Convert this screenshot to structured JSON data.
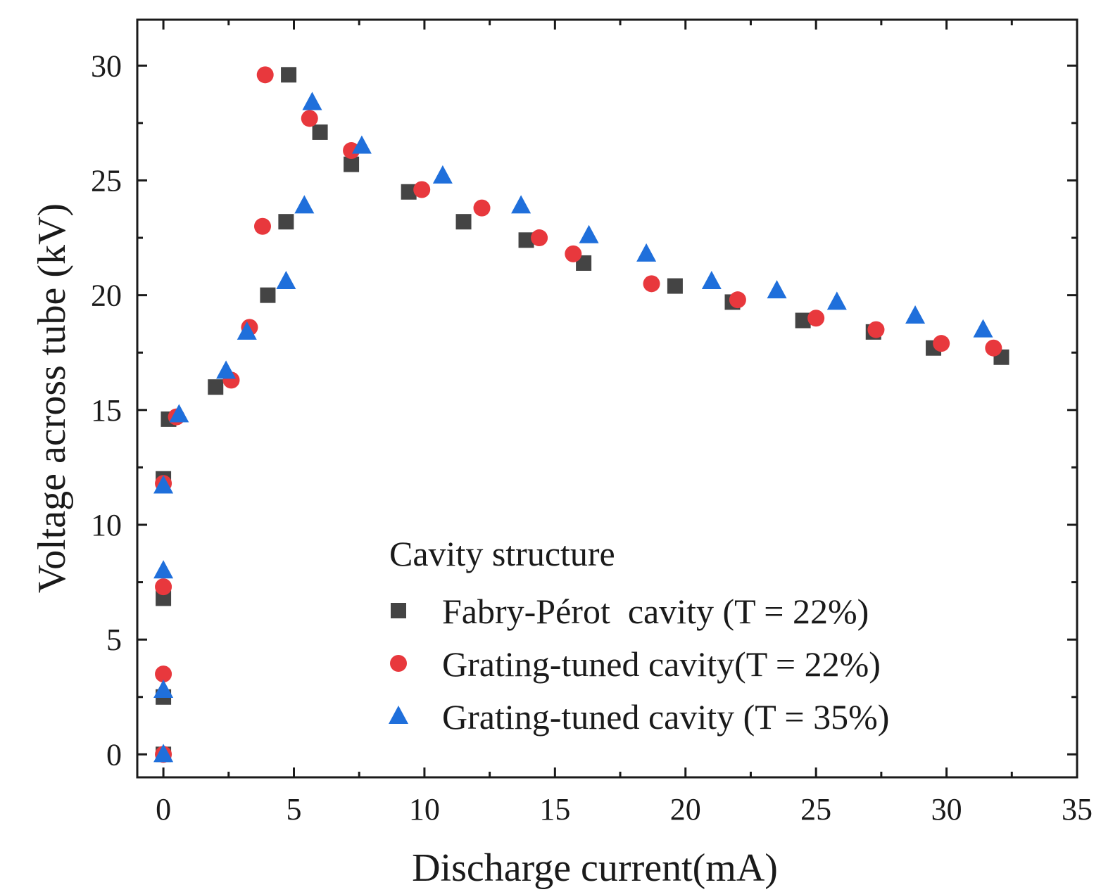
{
  "chart_data": {
    "type": "scatter",
    "title": "",
    "xlabel": "Discharge current(mA)",
    "ylabel": "Voltage across tube (kV)",
    "xlim": [
      -1,
      35
    ],
    "ylim": [
      -1,
      32
    ],
    "xticks": [
      0,
      5,
      10,
      15,
      20,
      25,
      30,
      35
    ],
    "yticks": [
      0,
      5,
      10,
      15,
      20,
      25,
      30
    ],
    "grid": false,
    "legend": {
      "title": "Cavity structure",
      "placement": "bottom-right"
    },
    "series": [
      {
        "name": "Fabry-Pérot  cavity (T = 22%)",
        "marker": "square",
        "color": "#444444",
        "x": [
          0,
          0,
          0,
          0,
          0.2,
          2.0,
          4.0,
          4.7,
          4.8,
          6.0,
          7.2,
          9.4,
          11.5,
          13.9,
          16.1,
          19.6,
          21.8,
          24.5,
          27.2,
          29.5,
          32.1
        ],
        "y": [
          0,
          2.5,
          6.8,
          12.0,
          14.6,
          16.0,
          20.0,
          23.2,
          29.6,
          27.1,
          25.7,
          24.5,
          23.2,
          22.4,
          21.4,
          20.4,
          19.7,
          18.9,
          18.4,
          17.7,
          17.3
        ]
      },
      {
        "name": "Grating-tuned cavity(T = 22%)",
        "marker": "circle",
        "color": "#e8383d",
        "x": [
          0,
          0,
          0,
          0,
          0.5,
          2.6,
          3.3,
          3.8,
          3.9,
          5.6,
          7.2,
          9.9,
          12.2,
          14.4,
          15.7,
          18.7,
          22.0,
          25.0,
          27.3,
          29.8,
          31.8
        ],
        "y": [
          0,
          3.5,
          7.3,
          11.8,
          14.7,
          16.3,
          18.6,
          23.0,
          29.6,
          27.7,
          26.3,
          24.6,
          23.8,
          22.5,
          21.8,
          20.5,
          19.8,
          19.0,
          18.5,
          17.9,
          17.7
        ]
      },
      {
        "name": "Grating-tuned cavity (T = 35%)",
        "marker": "triangle",
        "color": "#1f6fdb",
        "x": [
          0,
          0,
          0,
          0,
          0.6,
          2.4,
          3.2,
          4.7,
          5.4,
          5.7,
          7.6,
          10.7,
          13.7,
          16.3,
          18.5,
          21.0,
          23.5,
          25.8,
          28.8,
          31.4
        ],
        "y": [
          0,
          2.8,
          8.0,
          11.7,
          14.8,
          16.7,
          18.4,
          20.6,
          23.9,
          28.4,
          26.5,
          25.2,
          23.9,
          22.6,
          21.8,
          20.6,
          20.2,
          19.7,
          19.1,
          18.5
        ]
      }
    ]
  }
}
